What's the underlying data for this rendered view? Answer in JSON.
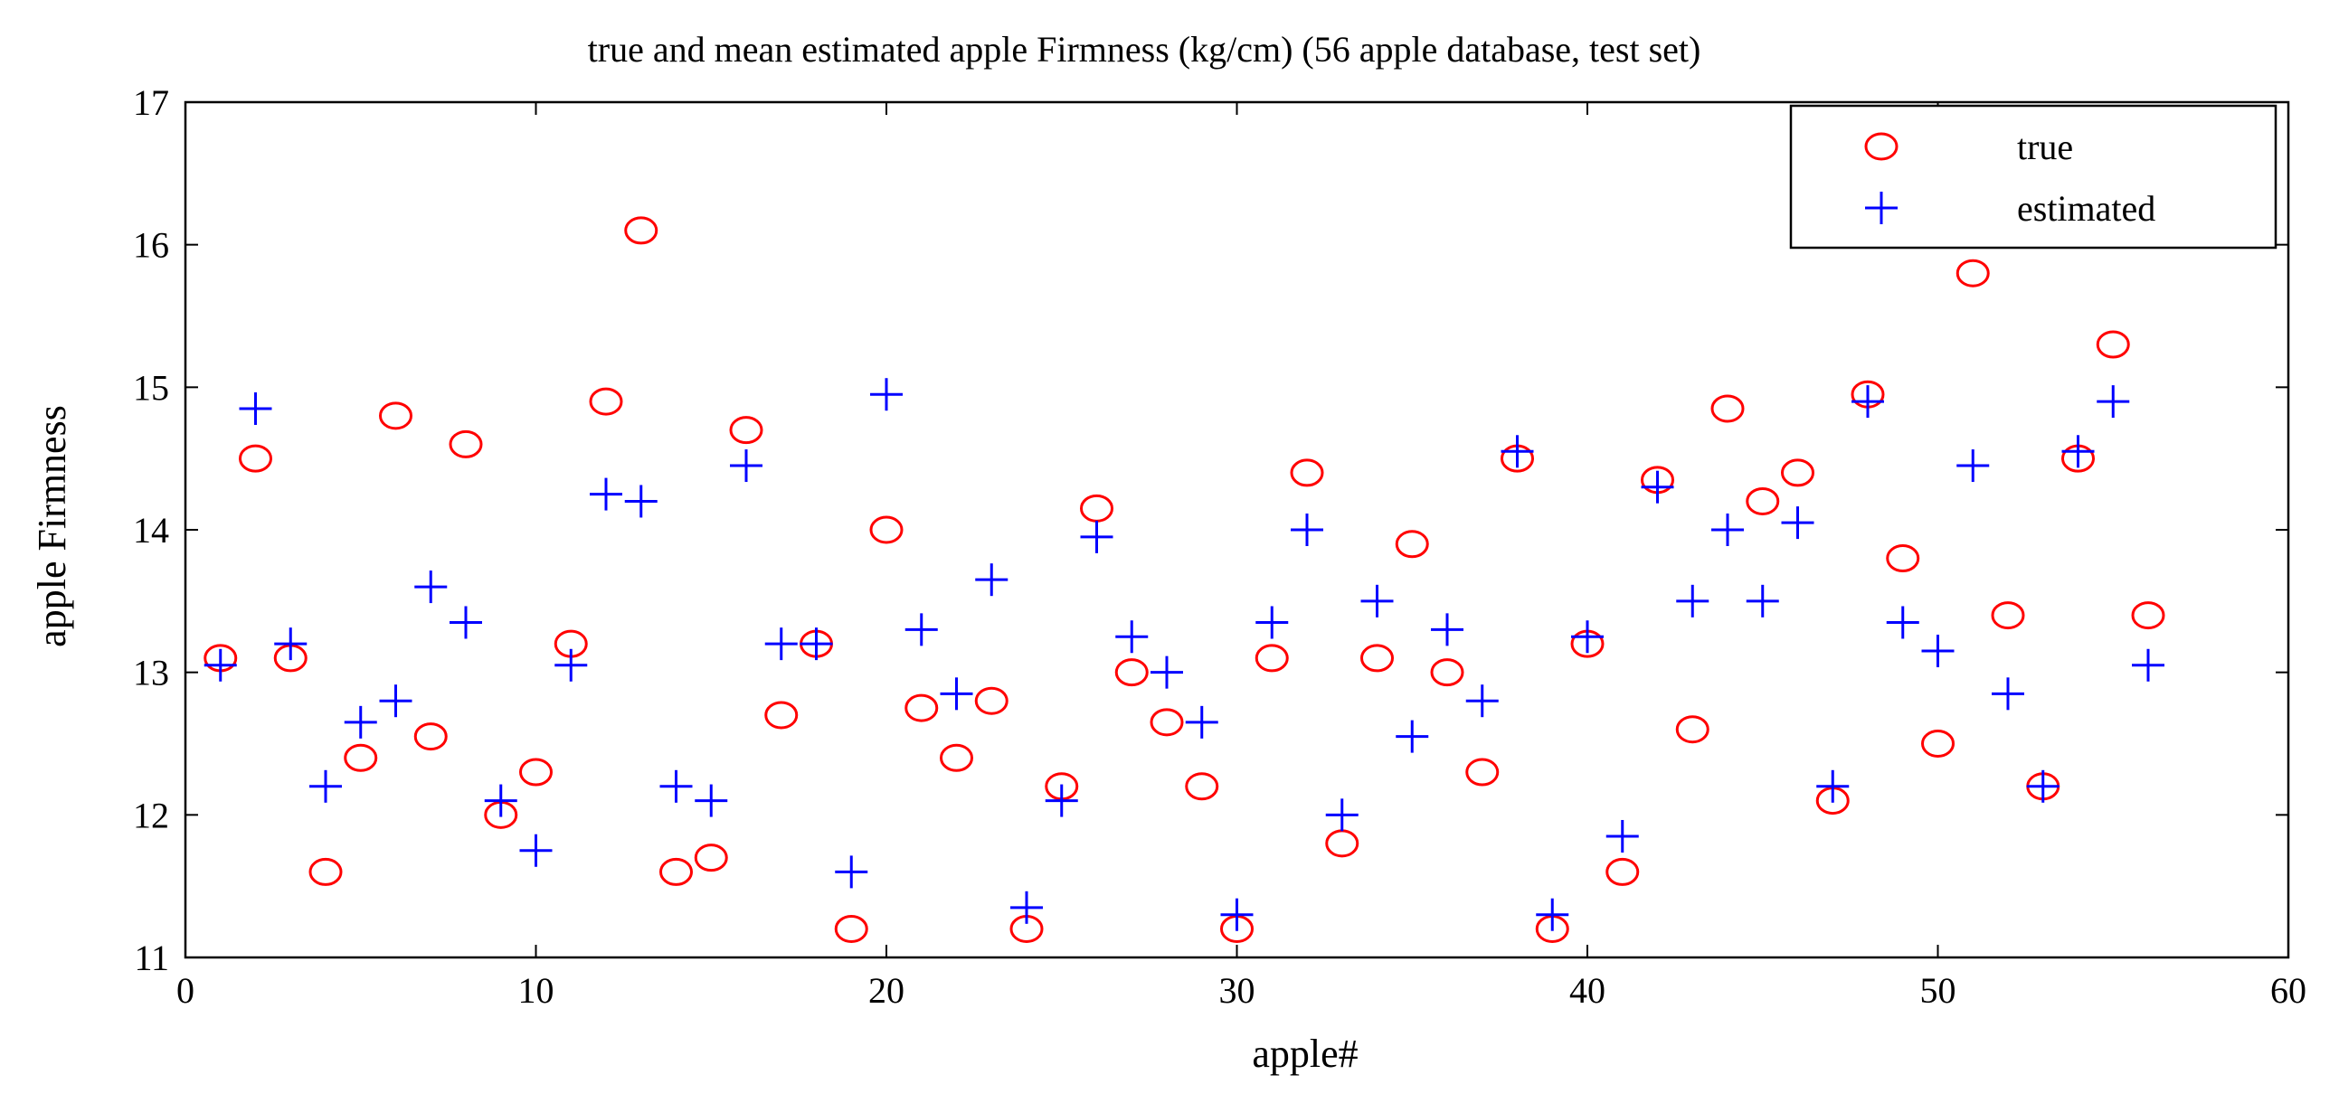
{
  "chart_data": {
    "type": "scatter",
    "title": "true and mean estimated apple Firmness (kg/cm) (56 apple database, test set)",
    "xlabel": "apple#",
    "ylabel": "apple Firmness",
    "xlim": [
      0,
      60
    ],
    "ylim": [
      11,
      17
    ],
    "xticks": [
      0,
      10,
      20,
      30,
      40,
      50,
      60
    ],
    "yticks": [
      11,
      12,
      13,
      14,
      15,
      16,
      17
    ],
    "grid": false,
    "legend_position": "top-right",
    "x": [
      1,
      2,
      3,
      4,
      5,
      6,
      7,
      8,
      9,
      10,
      11,
      12,
      13,
      14,
      15,
      16,
      17,
      18,
      19,
      20,
      21,
      22,
      23,
      24,
      25,
      26,
      27,
      28,
      29,
      30,
      31,
      32,
      33,
      34,
      35,
      36,
      37,
      38,
      39,
      40,
      41,
      42,
      43,
      44,
      45,
      46,
      47,
      48,
      49,
      50,
      51,
      52,
      53,
      54,
      55,
      56
    ],
    "series": [
      {
        "name": "true",
        "marker": "circle",
        "color": "#ff0000",
        "values": [
          13.1,
          14.5,
          13.1,
          11.6,
          12.4,
          14.8,
          12.55,
          14.6,
          12.0,
          12.3,
          13.2,
          14.9,
          16.1,
          11.6,
          11.7,
          14.7,
          12.7,
          13.2,
          11.2,
          14.0,
          12.75,
          12.4,
          12.8,
          11.2,
          12.2,
          14.15,
          13.0,
          12.65,
          12.2,
          11.2,
          13.1,
          14.4,
          11.8,
          13.1,
          13.9,
          13.0,
          12.3,
          14.5,
          11.2,
          13.2,
          11.6,
          14.35,
          12.6,
          14.85,
          14.2,
          14.4,
          12.1,
          14.95,
          13.8,
          12.5,
          15.8,
          13.4,
          12.2,
          14.5,
          15.3,
          13.4
        ]
      },
      {
        "name": "estimated",
        "marker": "plus",
        "color": "#0000ff",
        "values": [
          13.05,
          14.85,
          13.2,
          12.2,
          12.65,
          12.8,
          13.6,
          13.35,
          12.1,
          11.75,
          13.05,
          14.25,
          14.2,
          12.2,
          12.1,
          14.45,
          13.2,
          13.2,
          11.6,
          14.95,
          13.3,
          12.85,
          13.65,
          11.35,
          12.1,
          13.95,
          13.25,
          13.0,
          12.65,
          11.3,
          13.35,
          14.0,
          12.0,
          13.5,
          12.55,
          13.3,
          12.8,
          14.55,
          11.3,
          13.25,
          11.85,
          14.3,
          13.5,
          14.0,
          13.5,
          14.05,
          12.2,
          14.9,
          13.35,
          13.15,
          14.45,
          12.85,
          12.2,
          14.55,
          14.9,
          13.05
        ]
      }
    ]
  }
}
